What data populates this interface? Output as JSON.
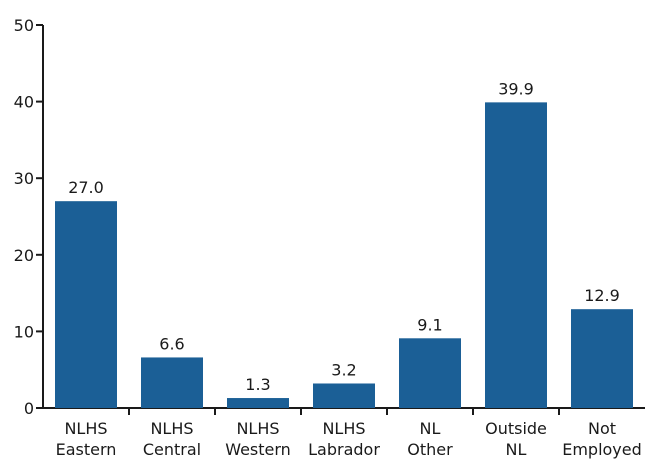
{
  "chart_data": {
    "type": "bar",
    "categories": [
      [
        "NLHS",
        "Eastern"
      ],
      [
        "NLHS",
        "Central"
      ],
      [
        "NLHS",
        "Western"
      ],
      [
        "NLHS",
        "Labrador"
      ],
      [
        "NL",
        "Other"
      ],
      [
        "Outside",
        "NL"
      ],
      [
        "Not",
        "Employed"
      ]
    ],
    "values": [
      27.0,
      6.6,
      1.3,
      3.2,
      9.1,
      39.9,
      12.9
    ],
    "value_labels": [
      "27.0",
      "6.6",
      "1.3",
      "3.2",
      "9.1",
      "39.9",
      "12.9"
    ],
    "ylim": [
      0,
      50
    ],
    "yticks": [
      0,
      10,
      20,
      30,
      40,
      50
    ],
    "title": "",
    "xlabel": "",
    "ylabel": "",
    "grid": false,
    "bar_color": "#1b5f96"
  }
}
